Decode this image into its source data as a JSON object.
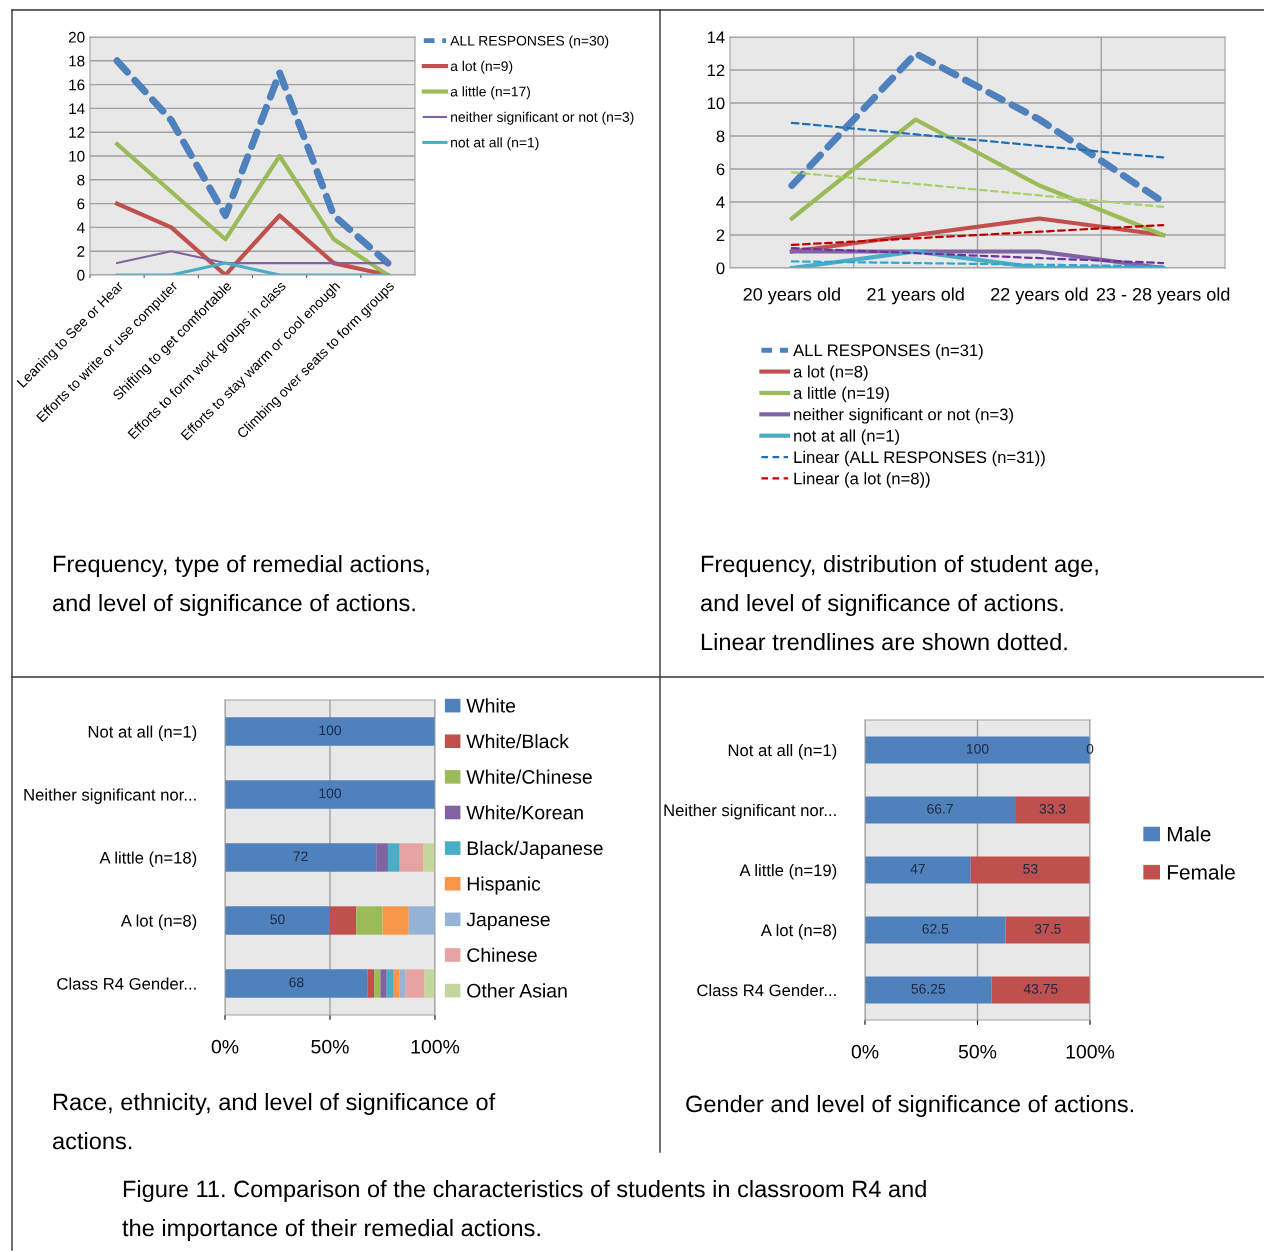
{
  "chart_data": [
    {
      "type": "line",
      "categories": [
        "Leaning to See or Hear",
        "Efforts to write or use computer",
        "Shifting to get comfortable",
        "Efforts to form work groups in class",
        "Efforts to stay warm or cool enough",
        "Climbing over seats to form groups"
      ],
      "series": [
        {
          "name": "ALL RESPONSES (n=30)",
          "color": "#4f81bd",
          "line_style": "dashed",
          "values": [
            18,
            13,
            5,
            17,
            5,
            1
          ]
        },
        {
          "name": "a lot (n=9)",
          "color": "#c0504d",
          "line_style": "solid",
          "values": [
            6,
            4,
            0,
            5,
            1,
            0
          ]
        },
        {
          "name": "a little (n=17)",
          "color": "#9bbb59",
          "line_style": "solid",
          "values": [
            11,
            7,
            3,
            10,
            3,
            0
          ]
        },
        {
          "name": "neither significant or not (n=3)",
          "color": "#8064a2",
          "line_style": "solid",
          "values": [
            1,
            2,
            1,
            1,
            1,
            1
          ]
        },
        {
          "name": "not at all (n=1)",
          "color": "#4bacc6",
          "line_style": "solid",
          "values": [
            0,
            0,
            1,
            0,
            0,
            0
          ]
        }
      ],
      "ylim": [
        0,
        20
      ],
      "yticks": [
        0,
        2,
        4,
        6,
        8,
        10,
        12,
        14,
        16,
        18,
        20
      ],
      "grid": "y",
      "legend": "top right",
      "annotations": [
        "Frequency, type of remedial actions,",
        "and level of significance of actions."
      ]
    },
    {
      "type": "line",
      "categories": [
        "20 years old",
        "21 years old",
        "22 years old",
        "23 - 28 years old"
      ],
      "series": [
        {
          "name": "ALL RESPONSES (n=31)",
          "color": "#4f81bd",
          "line_style": "dashed",
          "values": [
            5,
            13,
            9,
            4
          ]
        },
        {
          "name": "a lot (n=8)",
          "color": "#c0504d",
          "line_style": "solid",
          "values": [
            1,
            2,
            3,
            2
          ]
        },
        {
          "name": "a little (n=19)",
          "color": "#9bbb59",
          "line_style": "solid",
          "values": [
            3,
            9,
            5,
            2
          ]
        },
        {
          "name": "neither significant or not (n=3)",
          "color": "#8064a2",
          "line_style": "solid",
          "values": [
            1,
            1,
            1,
            0
          ]
        },
        {
          "name": "not at all (n=1)",
          "color": "#4bacc6",
          "line_style": "solid",
          "values": [
            0,
            1,
            0,
            0
          ]
        },
        {
          "name": "Linear (ALL RESPONSES (n=31))",
          "color": "#1f6fb5",
          "line_style": "dotted",
          "values": [
            8.8,
            8.1,
            7.4,
            6.7
          ]
        },
        {
          "name": "Linear (a lot (n=8))",
          "color": "#c00000",
          "line_style": "dotted",
          "values": [
            1.4,
            1.8,
            2.2,
            2.6
          ]
        },
        {
          "color": "#a9d06a",
          "line_style": "dotted",
          "values": [
            5.8,
            5.1,
            4.4,
            3.7
          ]
        },
        {
          "color": "#7030a0",
          "line_style": "dotted",
          "values": [
            1.2,
            0.9,
            0.6,
            0.3
          ]
        },
        {
          "color": "#31a6d0",
          "line_style": "dotted",
          "values": [
            0.4,
            0.3,
            0.2,
            0.1
          ]
        }
      ],
      "ylim": [
        0,
        14
      ],
      "yticks": [
        0,
        2,
        4,
        6,
        8,
        10,
        12,
        14
      ],
      "grid": true,
      "legend": "bottom",
      "annotations": [
        "Frequency, distribution of student age,",
        "and level of significance of actions.",
        "Linear trendlines are shown dotted."
      ]
    },
    {
      "type": "bar",
      "orientation": "horizontal",
      "stacked": true,
      "categories": [
        "Not at all (n=1)",
        "Neither significant nor...",
        "A little (n=18)",
        "A lot (n=8)",
        "Class R4 Gender..."
      ],
      "series": [
        {
          "name": "White",
          "color": "#4f81bd",
          "values": [
            100,
            100,
            72,
            50,
            68
          ],
          "value_labels": [
            "100",
            "100",
            "72",
            "50",
            "68"
          ]
        },
        {
          "name": "White/Black",
          "color": "#c0504d",
          "values": [
            0,
            0,
            0,
            12.5,
            3
          ]
        },
        {
          "name": "White/Chinese",
          "color": "#9bbb59",
          "values": [
            0,
            0,
            0,
            12.5,
            3
          ]
        },
        {
          "name": "White/Korean",
          "color": "#8064a2",
          "values": [
            0,
            0,
            5.6,
            0,
            3
          ]
        },
        {
          "name": "Black/Japanese",
          "color": "#4bacc6",
          "values": [
            0,
            0,
            5.6,
            0,
            3
          ]
        },
        {
          "name": "Hispanic",
          "color": "#f79646",
          "values": [
            0,
            0,
            0,
            12.5,
            3
          ]
        },
        {
          "name": "Japanese",
          "color": "#95b3d7",
          "values": [
            0,
            0,
            0,
            12.5,
            3
          ]
        },
        {
          "name": "Chinese",
          "color": "#e6a3a2",
          "values": [
            0,
            0,
            11.1,
            0,
            9
          ]
        },
        {
          "name": "Other Asian",
          "color": "#c3d69b",
          "values": [
            0,
            0,
            5.6,
            0,
            5
          ]
        }
      ],
      "xlim": [
        0,
        100
      ],
      "xticks": [
        {
          "value": 0,
          "label": "0%"
        },
        {
          "value": 50,
          "label": "50%"
        },
        {
          "value": 100,
          "label": "100%"
        }
      ],
      "grid": "x",
      "legend": "top right",
      "annotations": [
        "Race, ethnicity, and level of significance of",
        "actions."
      ]
    },
    {
      "type": "bar",
      "orientation": "horizontal",
      "stacked": true,
      "data_labels": true,
      "categories": [
        "Not at all (n=1)",
        "Neither significant nor...",
        "A little (n=19)",
        "A lot (n=8)",
        "Class R4 Gender..."
      ],
      "series": [
        {
          "name": "Male",
          "color": "#4f81bd",
          "values": [
            100,
            66.7,
            47,
            62.5,
            56.25
          ]
        },
        {
          "name": "Female",
          "color": "#c0504d",
          "values": [
            0,
            33.3,
            53,
            37.5,
            43.75
          ]
        }
      ],
      "xlim": [
        0,
        100
      ],
      "xticks": [
        {
          "value": 0,
          "label": "0%"
        },
        {
          "value": 50,
          "label": "50%"
        },
        {
          "value": 100,
          "label": "100%"
        }
      ],
      "grid": "x",
      "legend": "right",
      "annotations": [
        "Gender and level of significance of actions."
      ]
    },
    {
      "type": "other",
      "annotations": [
        "Figure 11. Comparison of the characteristics of students in classroom R4 and",
        "the importance of their remedial actions."
      ]
    }
  ]
}
